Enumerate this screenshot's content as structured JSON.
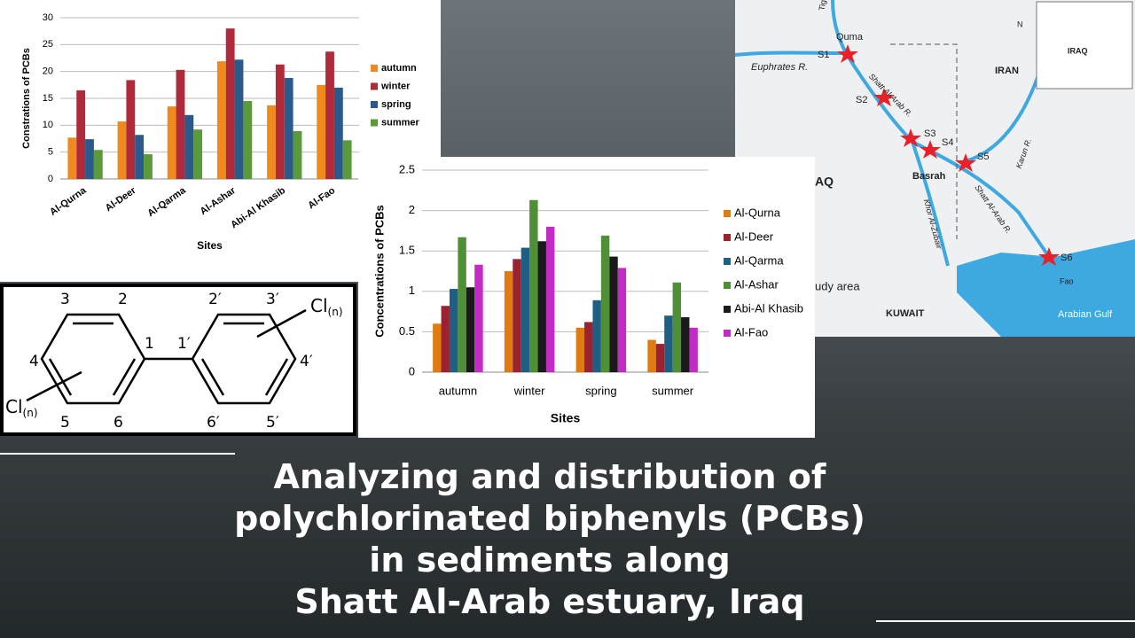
{
  "title": {
    "lines": [
      "Analyzing and distribution of",
      "polychlorinated biphenyls (PCBs)",
      "in sediments along",
      "Shatt Al-Arab estuary, Iraq"
    ]
  },
  "chart_data": [
    {
      "type": "bar",
      "y_label": "Constrations of PCBs",
      "x_label": "Sites",
      "categories": [
        "Al-Qurna",
        "Al-Deer",
        "Al-Qarma",
        "Al-Ashar",
        "Abi-Al Khasib",
        "Al-Fao"
      ],
      "series": [
        {
          "name": "autumn",
          "color": "#f08a1c",
          "values": [
            7.7,
            10.7,
            13.5,
            21.9,
            13.7,
            17.5
          ]
        },
        {
          "name": "winter",
          "color": "#b02a3a",
          "values": [
            16.5,
            18.4,
            20.3,
            28,
            21.3,
            23.7
          ]
        },
        {
          "name": "spring",
          "color": "#2a5a8c",
          "values": [
            7.4,
            8.2,
            11.9,
            22.2,
            18.8,
            17
          ]
        },
        {
          "name": "summer",
          "color": "#5a9a3a",
          "values": [
            5.4,
            4.6,
            9.2,
            14.5,
            8.9,
            7.2
          ]
        }
      ],
      "ylim": [
        0,
        30
      ],
      "yticks": [
        0,
        5,
        10,
        15,
        20,
        25,
        30
      ],
      "grid": true
    },
    {
      "type": "bar",
      "y_label": "Concentrations of PCBs",
      "x_label": "Sites",
      "categories": [
        "autumn",
        "winter",
        "spring",
        "summer"
      ],
      "series": [
        {
          "name": "Al-Qurna",
          "color": "#e07b12",
          "values": [
            0.6,
            1.25,
            0.55,
            0.4
          ]
        },
        {
          "name": "Al-Deer",
          "color": "#9b2230",
          "values": [
            0.82,
            1.4,
            0.62,
            0.35
          ]
        },
        {
          "name": "Al-Qarma",
          "color": "#1f5f86",
          "values": [
            1.03,
            1.54,
            0.89,
            0.7
          ]
        },
        {
          "name": "Al-Ashar",
          "color": "#4f8f36",
          "values": [
            1.67,
            2.13,
            1.69,
            1.11
          ]
        },
        {
          "name": "Abi-Al Khasib",
          "color": "#1a1a1a",
          "values": [
            1.05,
            1.62,
            1.43,
            0.68
          ]
        },
        {
          "name": "Al-Fao",
          "color": "#c22bc4",
          "values": [
            1.33,
            1.8,
            1.29,
            0.55
          ]
        }
      ],
      "ylim": [
        0,
        2.5
      ],
      "yticks": [
        0,
        0.5,
        1,
        1.5,
        2,
        2.5
      ],
      "grid": true
    }
  ],
  "diagram": {
    "labels": [
      "3",
      "2",
      "1",
      "1′",
      "2′",
      "3′",
      "4",
      "4′",
      "5",
      "6",
      "6′",
      "5′"
    ],
    "substituents": [
      {
        "text": "Cl",
        "sub": "(n)"
      },
      {
        "text": "Cl",
        "sub": "(n)"
      }
    ]
  },
  "map": {
    "labels": [
      "Tigris R.",
      "Quma",
      "S1",
      "Euphrates R.",
      "IRAN",
      "Shatt Al-Arab R.",
      "S2",
      "S3",
      "S4",
      "S5",
      "Basrah",
      "Karun R.",
      "Shatt Al-Arab R.",
      "Khor Al-Zubair",
      "S6",
      "Fao",
      "Arabian Gulf",
      "KUWAIT",
      "AQ",
      "udy area",
      "IRAQ",
      "N"
    ]
  }
}
